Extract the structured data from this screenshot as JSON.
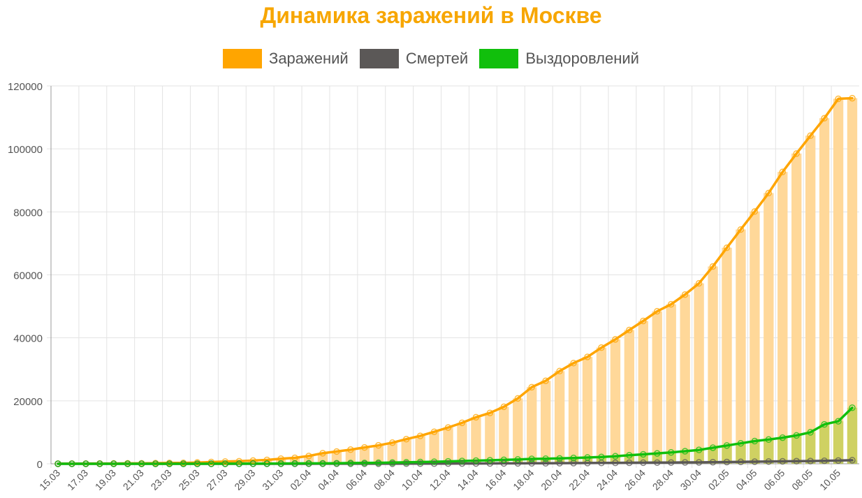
{
  "chart_data": {
    "type": "bar",
    "title": "Динамика заражений в Москве",
    "legend": [
      {
        "label": "Заражений",
        "color": "#ffa500"
      },
      {
        "label": "Смертей",
        "color": "#5b5857"
      },
      {
        "label": "Выздоровлений",
        "color": "#11bf0c"
      }
    ],
    "y_ticks": [
      "0",
      "20000",
      "40000",
      "60000",
      "80000",
      "100000",
      "120000"
    ],
    "ylim": [
      0,
      120000
    ],
    "grid": true,
    "categories": [
      "15.03",
      "16.03",
      "17.03",
      "18.03",
      "19.03",
      "20.03",
      "21.03",
      "22.03",
      "23.03",
      "24.03",
      "25.03",
      "26.03",
      "27.03",
      "28.03",
      "29.03",
      "30.03",
      "31.03",
      "01.04",
      "02.04",
      "03.04",
      "04.04",
      "05.04",
      "06.04",
      "07.04",
      "08.04",
      "09.04",
      "10.04",
      "11.04",
      "12.04",
      "13.04",
      "14.04",
      "15.04",
      "16.04",
      "17.04",
      "18.04",
      "19.04",
      "20.04",
      "21.04",
      "22.04",
      "23.04",
      "24.04",
      "25.04",
      "26.04",
      "27.04",
      "28.04",
      "29.04",
      "30.04",
      "01.05",
      "02.05",
      "03.05",
      "04.05",
      "05.05",
      "06.05",
      "07.05",
      "08.05",
      "09.05",
      "10.05",
      "11.05"
    ],
    "x_tick_labels": [
      "15.03",
      "17.03",
      "19.03",
      "21.03",
      "23.03",
      "25.03",
      "27.03",
      "29.03",
      "31.03",
      "02.04",
      "04.04",
      "06.04",
      "08.04",
      "10.04",
      "12.04",
      "14.04",
      "16.04",
      "18.04",
      "20.04",
      "22.04",
      "24.04",
      "26.04",
      "28.04",
      "30.04",
      "02.05",
      "04.05",
      "06.05",
      "08.05",
      "10.05"
    ],
    "series": [
      {
        "name": "Заражений",
        "color": "#ffa500",
        "values": [
          35,
          53,
          56,
          86,
          98,
          131,
          137,
          191,
          262,
          290,
          410,
          546,
          703,
          817,
          1014,
          1226,
          1613,
          1880,
          2475,
          3357,
          3893,
          4484,
          5181,
          5841,
          6698,
          7822,
          8852,
          10158,
          11513,
          13002,
          14776,
          16146,
          18105,
          20754,
          24324,
          26350,
          29433,
          31981,
          33940,
          36897,
          39509,
          42480,
          45351,
          48426,
          50646,
          53739,
          57300,
          62658,
          68606,
          74401,
          80115,
          85973,
          92676,
          98522,
          104189,
          109740,
          115909,
          116100
        ]
      },
      {
        "name": "Смертей",
        "color": "#5b5857",
        "values": [
          0,
          0,
          0,
          0,
          0,
          0,
          0,
          0,
          1,
          1,
          1,
          1,
          3,
          3,
          5,
          6,
          8,
          10,
          11,
          12,
          17,
          20,
          24,
          29,
          31,
          44,
          50,
          61,
          72,
          85,
          95,
          106,
          123,
          138,
          159,
          175,
          204,
          223,
          240,
          269,
          296,
          326,
          349,
          372,
          400,
          433,
          446,
          504,
          555,
          597,
          665,
          706,
          782,
          823,
          866,
          935,
          1018,
          1124
        ]
      },
      {
        "name": "Выздоровлений",
        "color": "#11bf0c",
        "values": [
          0,
          0,
          0,
          0,
          0,
          0,
          0,
          0,
          0,
          5,
          10,
          15,
          20,
          25,
          40,
          50,
          80,
          110,
          130,
          140,
          180,
          240,
          260,
          320,
          380,
          460,
          550,
          650,
          750,
          880,
          1000,
          1100,
          1250,
          1350,
          1550,
          1620,
          1700,
          1850,
          2000,
          2150,
          2400,
          2700,
          3000,
          3300,
          3600,
          4000,
          4400,
          5100,
          5800,
          6500,
          7200,
          7700,
          8300,
          9000,
          10000,
          12500,
          13500,
          17800
        ]
      }
    ]
  }
}
